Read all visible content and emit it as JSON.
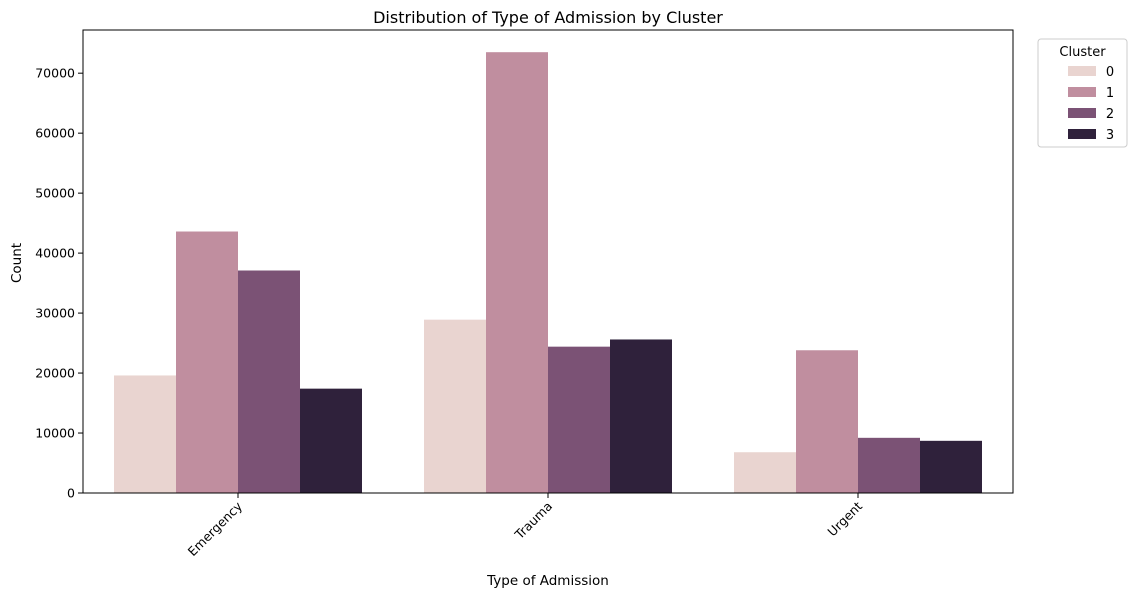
{
  "chart_data": {
    "type": "bar",
    "title": "Distribution of Type of Admission by Cluster",
    "xlabel": "Type of Admission",
    "ylabel": "Count",
    "categories": [
      "Emergency",
      "Trauma",
      "Urgent"
    ],
    "series": [
      {
        "name": "0",
        "color": "#e9d4d0",
        "values": [
          19600,
          28900,
          6800
        ]
      },
      {
        "name": "1",
        "color": "#c08e9f",
        "values": [
          43600,
          73500,
          23800
        ]
      },
      {
        "name": "2",
        "color": "#7b5275",
        "values": [
          37100,
          24400,
          9200
        ]
      },
      {
        "name": "3",
        "color": "#2f213b",
        "values": [
          17400,
          25600,
          8700
        ]
      }
    ],
    "ylim": [
      0,
      77200
    ],
    "yticks": [
      0,
      10000,
      20000,
      30000,
      40000,
      50000,
      60000,
      70000
    ],
    "xtick_rotation": 45,
    "grid": false,
    "legend": {
      "title": "Cluster",
      "position": "outside-top-right"
    }
  }
}
